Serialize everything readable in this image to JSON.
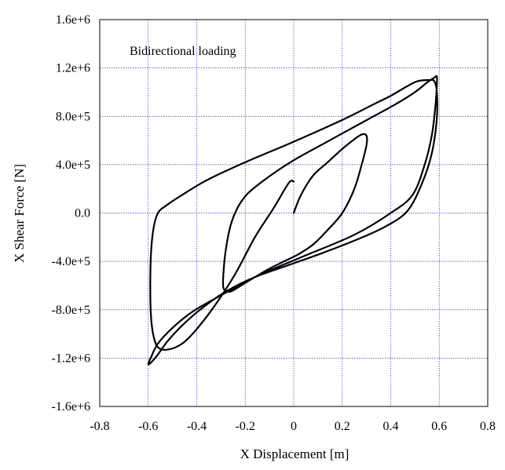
{
  "chart_data": {
    "type": "line",
    "annotation": "Bidirectional loading",
    "xlabel": "X Displacement [m]",
    "ylabel": "X Shear Force [N]",
    "xlim": [
      -0.8,
      0.8
    ],
    "ylim": [
      -1600000,
      1600000
    ],
    "x_ticks": [
      -0.8,
      -0.6,
      -0.4,
      -0.2,
      0,
      0.2,
      0.4,
      0.6,
      0.8
    ],
    "x_tick_labels": [
      "-0.8",
      "-0.6",
      "-0.4",
      "-0.2",
      "0",
      "0.2",
      "0.4",
      "0.6",
      "0.8"
    ],
    "y_ticks": [
      1600000,
      1200000,
      800000,
      400000,
      0,
      -400000,
      -800000,
      -1200000,
      -1600000
    ],
    "y_tick_labels": [
      "1.6e+6",
      "1.2e+6",
      "8.0e+5",
      "4.0e+5",
      "0.0",
      "-4.0e+5",
      "-8.0e+5",
      "-1.2e+6",
      "-1.6e+6"
    ],
    "grid": true,
    "grid_color": "#3333cc",
    "line_color": "#000000",
    "series": [
      {
        "x": [
          0.0,
          0.03,
          0.08,
          0.14,
          0.2,
          0.25,
          0.28,
          0.3,
          0.3,
          0.28,
          0.25,
          0.2,
          0.14,
          0.08,
          0.02,
          -0.04,
          -0.1,
          -0.16,
          -0.21,
          -0.25,
          -0.27,
          -0.29,
          -0.29,
          -0.28,
          -0.26,
          -0.23,
          -0.19,
          -0.13,
          -0.06,
          0.02,
          0.12,
          0.22,
          0.32,
          0.42,
          0.5,
          0.55,
          0.58,
          0.59,
          0.59,
          0.585,
          0.57,
          0.54,
          0.49,
          0.4,
          0.25,
          0.05,
          -0.15,
          -0.3,
          -0.42,
          -0.5,
          -0.56,
          -0.59,
          -0.6,
          -0.59,
          -0.56,
          -0.52,
          -0.46,
          -0.38,
          -0.28,
          -0.16,
          -0.02,
          0.12,
          0.26,
          0.38,
          0.47,
          0.53,
          0.57,
          0.59,
          0.59,
          0.58,
          0.56,
          0.51,
          0.46,
          0.4,
          0.33,
          0.2,
          0.0,
          -0.2,
          -0.36,
          -0.46,
          -0.52,
          -0.56,
          -0.58,
          -0.59,
          -0.59,
          -0.58,
          -0.56,
          -0.52,
          -0.46,
          -0.4,
          -0.32,
          -0.24,
          -0.16,
          -0.08,
          -0.02,
          0.0
        ],
        "y": [
          0,
          150000,
          310000,
          420000,
          530000,
          610000,
          650000,
          640000,
          560000,
          400000,
          200000,
          0,
          -140000,
          -260000,
          -340000,
          -400000,
          -460000,
          -530000,
          -590000,
          -640000,
          -650000,
          -620000,
          -500000,
          -300000,
          -100000,
          50000,
          160000,
          260000,
          360000,
          460000,
          570000,
          680000,
          790000,
          900000,
          1000000,
          1080000,
          1120000,
          1130000,
          1050000,
          900000,
          650000,
          400000,
          150000,
          0,
          -180000,
          -350000,
          -520000,
          -680000,
          -820000,
          -950000,
          -1080000,
          -1200000,
          -1250000,
          -1240000,
          -1170000,
          -1060000,
          -930000,
          -790000,
          -650000,
          -530000,
          -430000,
          -330000,
          -220000,
          -110000,
          20000,
          250000,
          500000,
          780000,
          1000000,
          1090000,
          1100000,
          1090000,
          1040000,
          970000,
          900000,
          770000,
          590000,
          420000,
          270000,
          150000,
          70000,
          0,
          -150000,
          -400000,
          -800000,
          -1000000,
          -1110000,
          -1130000,
          -1080000,
          -960000,
          -750000,
          -500000,
          -200000,
          50000,
          250000,
          260000
        ]
      }
    ]
  }
}
